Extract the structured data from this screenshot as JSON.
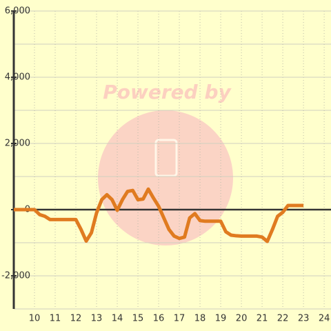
{
  "chart_data": {
    "type": "line",
    "watermark": "Powered by",
    "x": [
      9,
      9.25,
      9.5,
      9.75,
      10,
      10.25,
      10.5,
      10.75,
      11,
      11.25,
      11.5,
      11.75,
      12,
      12.25,
      12.5,
      12.75,
      13,
      13.25,
      13.5,
      13.75,
      14,
      14.25,
      14.5,
      14.75,
      15,
      15.25,
      15.5,
      15.75,
      16,
      16.25,
      16.5,
      16.75,
      17,
      17.25,
      17.5,
      17.75,
      18,
      18.25,
      18.5,
      18.75,
      19,
      19.25,
      19.5,
      19.75,
      20,
      20.25,
      20.5,
      20.75,
      21,
      21.25,
      21.5,
      21.75,
      22,
      22.25,
      22.5,
      22.75,
      23
    ],
    "series": [
      {
        "color": "#e07b20",
        "values": [
          0,
          0,
          0,
          0,
          0,
          -150,
          -200,
          -300,
          -300,
          -300,
          -300,
          -300,
          -300,
          -600,
          -950,
          -700,
          -100,
          300,
          450,
          300,
          -20,
          300,
          550,
          580,
          300,
          320,
          620,
          350,
          100,
          -250,
          -600,
          -800,
          -870,
          -830,
          -250,
          -120,
          -330,
          -350,
          -350,
          -350,
          -350,
          -670,
          -770,
          -790,
          -800,
          -800,
          -800,
          -800,
          -830,
          -960,
          -600,
          -200,
          -80,
          125,
          125,
          125,
          125
        ]
      }
    ],
    "xlim": [
      9,
      24.33
    ],
    "xticks": [
      10,
      11,
      12,
      13,
      14,
      15,
      16,
      17,
      18,
      19,
      20,
      21,
      22,
      23,
      24
    ],
    "ylim": [
      -3000,
      6000
    ],
    "yticks": [
      {
        "value": -2000,
        "label": "-2,000"
      },
      0,
      {
        "value": 2000,
        "label": "2,000"
      },
      {
        "value": 4000,
        "label": "4,000"
      },
      {
        "value": 6000,
        "label": "6,000"
      }
    ],
    "y_minor_ticks": [
      -3000,
      -1000,
      1000,
      3000,
      5000
    ],
    "grid": true
  }
}
